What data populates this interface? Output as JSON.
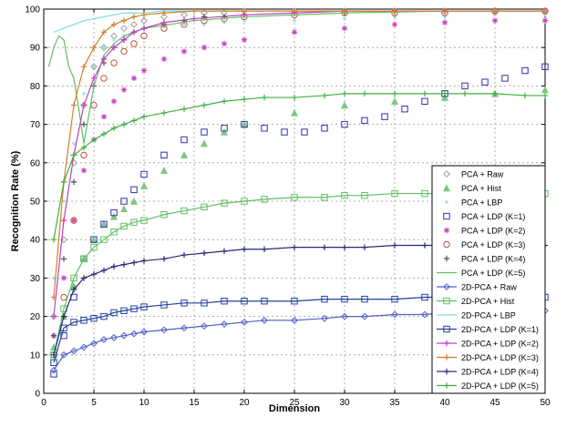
{
  "chart_data": {
    "type": "line",
    "title": "",
    "xlabel": "Dimension",
    "ylabel": "Recognition Rate (%)",
    "xlim": [
      0,
      50
    ],
    "ylim": [
      0,
      100
    ],
    "xticks": [
      0,
      5,
      10,
      15,
      20,
      25,
      30,
      35,
      40,
      45,
      50
    ],
    "yticks": [
      0,
      10,
      20,
      30,
      40,
      50,
      60,
      70,
      80,
      90,
      100
    ],
    "grid": true,
    "legend_position": "bottom-right",
    "series": [
      {
        "name": "PCA + Raw",
        "color": "#a0a0a0",
        "marker": "diamond",
        "line": false,
        "x": [
          1,
          2,
          3,
          4,
          5,
          6,
          7,
          8,
          9,
          10,
          12,
          14,
          16,
          18,
          20,
          25,
          30,
          35,
          40,
          45,
          50
        ],
        "y": [
          20,
          40,
          60,
          75,
          85,
          90,
          93,
          95,
          96,
          97,
          98,
          98.5,
          99,
          99,
          99.5,
          99.5,
          99.5,
          99.5,
          99.5,
          99.5,
          99.5
        ]
      },
      {
        "name": "PCA + Hist",
        "color": "#7ec87e",
        "marker": "triangle",
        "line": false,
        "x": [
          1,
          2,
          3,
          4,
          5,
          6,
          7,
          8,
          9,
          10,
          12,
          14,
          16,
          18,
          20,
          25,
          30,
          35,
          40,
          45,
          50
        ],
        "y": [
          12,
          20,
          28,
          35,
          40,
          44,
          46,
          48,
          50,
          54,
          58,
          62,
          65,
          68,
          70,
          73,
          75,
          76,
          77,
          78,
          79
        ]
      },
      {
        "name": "PCA + LBP",
        "color": "#9ee4e4",
        "marker": "dot",
        "line": false,
        "x": [
          1,
          2,
          3,
          4,
          5,
          6,
          7,
          8,
          9,
          10,
          12,
          14,
          16,
          18,
          20,
          25,
          30,
          35,
          40,
          45,
          50
        ],
        "y": [
          30,
          50,
          65,
          78,
          85,
          90,
          92,
          93,
          94,
          95,
          95.5,
          96,
          96,
          96.5,
          97,
          97,
          97.5,
          98,
          98,
          98.5,
          98.5
        ]
      },
      {
        "name": "PCA + LDP (K=1)",
        "color": "#3030b0",
        "marker": "square",
        "line": false,
        "x": [
          1,
          2,
          3,
          4,
          5,
          6,
          7,
          8,
          9,
          10,
          12,
          14,
          16,
          18,
          20,
          22,
          24,
          26,
          28,
          30,
          32,
          34,
          36,
          38,
          40,
          42,
          44,
          46,
          48,
          50
        ],
        "y": [
          5,
          15,
          25,
          35,
          40,
          44,
          47,
          50,
          53,
          57,
          62,
          66,
          68,
          69,
          70,
          69,
          68,
          68,
          69,
          70,
          71,
          72,
          74,
          76,
          78,
          80,
          81,
          82,
          84,
          85
        ]
      },
      {
        "name": "PCA + LDP (K=2)",
        "color": "#c040c0",
        "marker": "star",
        "line": false,
        "x": [
          1,
          2,
          3,
          4,
          5,
          6,
          7,
          8,
          9,
          10,
          12,
          14,
          16,
          18,
          20,
          25,
          30,
          35,
          40,
          45,
          50
        ],
        "y": [
          15,
          30,
          45,
          58,
          66,
          72,
          76,
          79,
          82,
          84,
          87,
          89,
          90,
          91,
          92,
          94,
          95,
          96,
          96.5,
          97,
          97
        ]
      },
      {
        "name": "PCA + LDP (K=3)",
        "color": "#c05040",
        "marker": "circle",
        "line": false,
        "x": [
          1,
          2,
          3,
          4,
          5,
          6,
          7,
          8,
          9,
          10,
          12,
          14,
          16,
          18,
          20,
          25,
          30,
          35,
          40,
          45,
          50
        ],
        "y": [
          10,
          25,
          45,
          62,
          75,
          82,
          86,
          89,
          91,
          93,
          95,
          96,
          97,
          97.5,
          98,
          98.5,
          99,
          99,
          99,
          99.5,
          99.5
        ]
      },
      {
        "name": "PCA + LDP (K=4)",
        "color": "#505050",
        "marker": "plus",
        "line": false,
        "x": [
          1,
          2,
          3,
          4,
          5,
          6,
          7,
          8,
          9,
          10,
          12,
          14,
          16,
          18,
          20,
          25,
          30,
          35,
          40,
          45,
          50
        ],
        "y": [
          15,
          35,
          55,
          70,
          80,
          86,
          90,
          92,
          94,
          95,
          96,
          97,
          98,
          98,
          98.5,
          99,
          99,
          99.5,
          99.5,
          99.5,
          99.5
        ]
      },
      {
        "name": "PCA + LDP (K=5)",
        "color": "#60c060",
        "marker": "none",
        "line": true,
        "x": [
          0.5,
          1,
          1.5,
          2,
          2.5,
          3,
          3.5,
          4,
          5,
          6,
          7,
          8,
          10,
          15,
          20,
          30,
          40,
          50
        ],
        "y": [
          85,
          90,
          93,
          92,
          85,
          82,
          74,
          65,
          80,
          88,
          91,
          93,
          95,
          97,
          98,
          99,
          99.5,
          99.5
        ]
      },
      {
        "name": "2D-PCA + Raw",
        "color": "#5060c8",
        "marker": "diamond",
        "line": true,
        "x": [
          1,
          2,
          3,
          4,
          5,
          6,
          7,
          8,
          9,
          10,
          12,
          14,
          16,
          18,
          20,
          22,
          25,
          28,
          30,
          32,
          35,
          38,
          40,
          42,
          45,
          48,
          50
        ],
        "y": [
          6,
          10,
          11,
          12,
          13,
          14,
          14.5,
          15,
          15.5,
          16,
          16.5,
          17,
          17.5,
          18,
          18.5,
          19,
          19,
          19.5,
          20,
          20,
          20.5,
          20.5,
          21,
          21,
          21,
          21.5,
          21.5
        ]
      },
      {
        "name": "2D-PCA + Hist",
        "color": "#60c060",
        "marker": "square",
        "line": true,
        "x": [
          1,
          2,
          3,
          4,
          5,
          6,
          7,
          8,
          9,
          10,
          12,
          14,
          16,
          18,
          20,
          22,
          25,
          28,
          30,
          32,
          35,
          38,
          40,
          42,
          45,
          48,
          50
        ],
        "y": [
          10,
          22,
          30,
          35,
          38,
          40,
          42,
          43.5,
          44.5,
          45,
          46.5,
          47.5,
          48.5,
          49.5,
          50,
          50.5,
          51,
          51,
          51.5,
          51.5,
          52,
          52,
          52,
          52,
          52,
          52,
          52
        ]
      },
      {
        "name": "2D-PCA + LBP",
        "color": "#78dcdc",
        "marker": "none",
        "line": true,
        "x": [
          1,
          2,
          3,
          4,
          5,
          6,
          7,
          8,
          10,
          12,
          15,
          20,
          25,
          30,
          35,
          40,
          45,
          50
        ],
        "y": [
          94,
          95,
          96,
          97,
          97.5,
          98,
          98.5,
          99,
          99,
          99.5,
          99.5,
          99.5,
          99.5,
          99.5,
          99.5,
          99.5,
          99.5,
          99.5
        ]
      },
      {
        "name": "2D-PCA + LDP (K=1)",
        "color": "#2040a0",
        "marker": "square",
        "line": true,
        "x": [
          1,
          2,
          3,
          4,
          5,
          6,
          7,
          8,
          9,
          10,
          12,
          14,
          16,
          18,
          20,
          22,
          25,
          28,
          30,
          32,
          35,
          38,
          40,
          42,
          45,
          48,
          50
        ],
        "y": [
          8,
          17,
          18.5,
          19,
          19.5,
          20,
          21,
          21.5,
          22,
          22.5,
          23,
          23.5,
          23.5,
          24,
          24,
          24,
          24,
          24.5,
          24.5,
          24.5,
          24.5,
          25,
          25,
          25,
          25,
          25,
          25
        ]
      },
      {
        "name": "2D-PCA + LDP (K=2)",
        "color": "#c040c0",
        "marker": "plus",
        "line": true,
        "x": [
          1,
          2,
          3,
          4,
          5,
          6,
          7,
          8,
          9,
          10,
          12,
          15,
          20,
          25,
          30,
          35,
          40,
          45,
          50
        ],
        "y": [
          20,
          45,
          62,
          75,
          82,
          87,
          90,
          92,
          94,
          95,
          96.5,
          97.5,
          98.5,
          99,
          99.5,
          99.5,
          99.5,
          99.5,
          99.5
        ]
      },
      {
        "name": "2D-PCA + LDP (K=3)",
        "color": "#d08030",
        "marker": "plus",
        "line": true,
        "x": [
          1,
          2,
          3,
          4,
          5,
          6,
          7,
          8,
          9,
          10,
          12,
          15,
          20,
          25,
          30,
          35,
          40,
          45,
          50
        ],
        "y": [
          25,
          55,
          75,
          85,
          90,
          94,
          96,
          97,
          98,
          98.5,
          99,
          99.5,
          99.5,
          99.5,
          99.5,
          99.5,
          99.5,
          99.5,
          99.5
        ]
      },
      {
        "name": "2D-PCA + LDP (K=4)",
        "color": "#2a2a7a",
        "marker": "plus",
        "line": true,
        "x": [
          1,
          2,
          3,
          4,
          5,
          6,
          7,
          8,
          9,
          10,
          12,
          14,
          16,
          18,
          20,
          22,
          25,
          28,
          30,
          32,
          35,
          38,
          40,
          42,
          45,
          48,
          50
        ],
        "y": [
          10,
          20,
          27,
          30,
          31,
          32,
          33,
          33.5,
          34,
          34.5,
          35,
          36,
          36.5,
          37,
          37.5,
          37.5,
          38,
          38,
          38,
          38,
          38.5,
          38.5,
          38.5,
          38.5,
          38.5,
          38.5,
          38.5
        ]
      },
      {
        "name": "2D-PCA + LDP (K=5)",
        "color": "#40b040",
        "marker": "plus",
        "line": true,
        "x": [
          1,
          2,
          3,
          4,
          5,
          6,
          7,
          8,
          9,
          10,
          12,
          14,
          16,
          18,
          20,
          22,
          25,
          28,
          30,
          32,
          35,
          38,
          40,
          42,
          45,
          48,
          50
        ],
        "y": [
          40,
          55,
          62,
          64,
          66,
          67.5,
          69,
          70,
          71,
          72,
          73,
          74,
          75,
          76,
          76.5,
          77,
          77,
          77.5,
          78,
          78,
          78,
          78,
          78,
          78,
          78,
          77.5,
          77.5
        ]
      }
    ]
  }
}
